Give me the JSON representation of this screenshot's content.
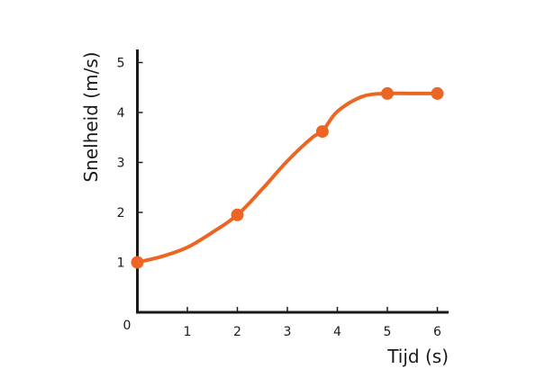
{
  "chart_data": {
    "type": "line",
    "title": "",
    "xlabel": "Tijd (s)",
    "ylabel": "Snelheid (m/s)",
    "xlim": [
      0,
      6
    ],
    "ylim": [
      0,
      5
    ],
    "grid": false,
    "legend": "none",
    "origin_label": "0",
    "x_ticks": [
      1,
      2,
      3,
      4,
      5,
      6
    ],
    "y_ticks": [
      1,
      2,
      3,
      4,
      5
    ],
    "x_tick_labels": [
      "1",
      "2",
      "3",
      "4",
      "5",
      "6"
    ],
    "y_tick_labels": [
      "1",
      "2",
      "3",
      "4",
      "5"
    ],
    "series": [
      {
        "name": "Snelheid",
        "color": "#ec6525",
        "x": [
          0,
          2,
          3.7,
          5,
          6
        ],
        "y": [
          1,
          1.95,
          3.62,
          4.38,
          4.38
        ],
        "curve_x": [
          0,
          0.5,
          1,
          1.5,
          2,
          2.5,
          3,
          3.5,
          3.7,
          4,
          4.5,
          5,
          5.5,
          6
        ],
        "curve_y": [
          1,
          1.12,
          1.3,
          1.6,
          1.95,
          2.47,
          3.03,
          3.5,
          3.62,
          4.02,
          4.32,
          4.38,
          4.38,
          4.38
        ]
      }
    ]
  }
}
